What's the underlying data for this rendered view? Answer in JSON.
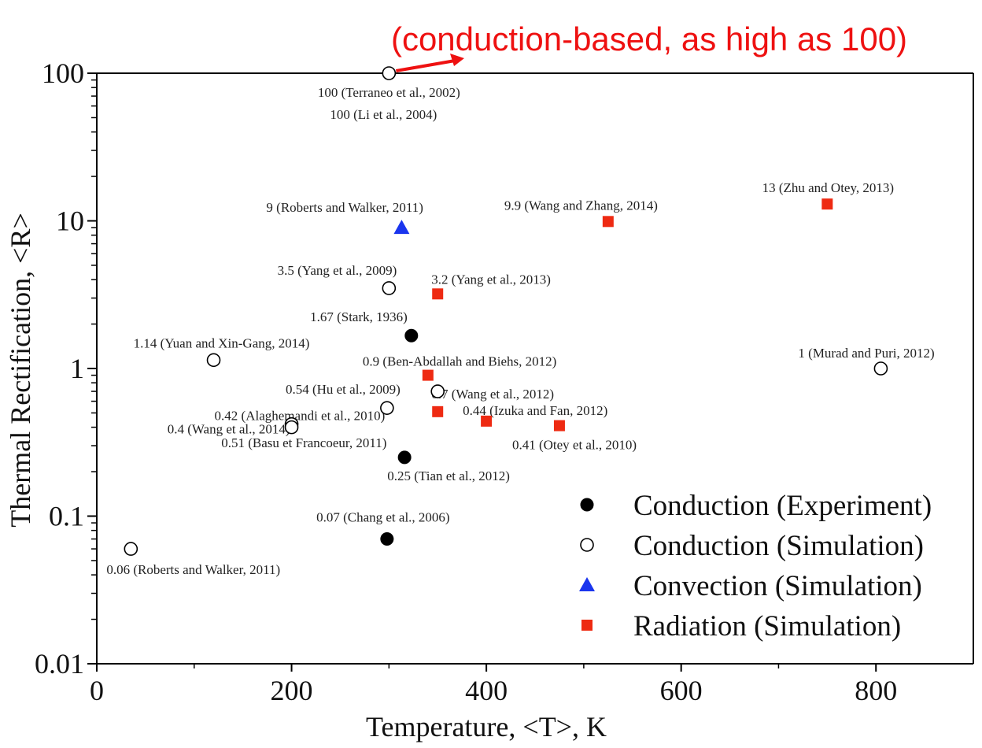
{
  "chart_data": {
    "type": "scatter",
    "title": "",
    "xlabel": "Temperature, <T>, K",
    "ylabel": "Thermal Rectification, <R>",
    "xlim": [
      0,
      900
    ],
    "ylim": [
      0.01,
      100
    ],
    "yscale": "log",
    "xticks": [
      "0",
      "200",
      "400",
      "600",
      "800"
    ],
    "yticks": [
      "0.01",
      "0.1",
      "1",
      "10",
      "100"
    ],
    "grid": false,
    "legend_position": "bottom-right",
    "annotation": {
      "text": "(conduction-based, as high as 100)",
      "color": "#ee1111",
      "points_to": {
        "x": 300,
        "y": 100
      }
    },
    "series": [
      {
        "name": "Conduction (Experiment)",
        "marker": "filled-circle",
        "color": "#000000",
        "points": [
          {
            "x": 323,
            "y": 1.67,
            "label": "1.67 (Stark, 1936)"
          },
          {
            "x": 316,
            "y": 0.25,
            "label": "0.25 (Tian et al., 2012)"
          },
          {
            "x": 298,
            "y": 0.07,
            "label": "0.07 (Chang et al., 2006)"
          }
        ]
      },
      {
        "name": "Conduction (Simulation)",
        "marker": "open-circle",
        "color": "#000000",
        "points": [
          {
            "x": 300,
            "y": 100,
            "label": "100 (Terraneo et al., 2002)"
          },
          {
            "x": 300,
            "y": 100,
            "label": "100 (Li et al., 2004)"
          },
          {
            "x": 300,
            "y": 3.5,
            "label": "3.5 (Yang et al., 2009)"
          },
          {
            "x": 120,
            "y": 1.14,
            "label": "1.14 (Yuan and Xin-Gang, 2014)"
          },
          {
            "x": 350,
            "y": 0.7,
            "label": "0.7 (Wang et al., 2012)"
          },
          {
            "x": 298,
            "y": 0.54,
            "label": "0.54 (Hu et al., 2009)"
          },
          {
            "x": 200,
            "y": 0.42,
            "label": "0.42 (Alaghemandi et al., 2010)"
          },
          {
            "x": 200,
            "y": 0.4,
            "label": "0.4 (Wang et al., 2014)"
          },
          {
            "x": 35,
            "y": 0.06,
            "label": "0.06 (Roberts and Walker, 2011)"
          },
          {
            "x": 805,
            "y": 1,
            "label": "1 (Murad and Puri, 2012)"
          }
        ]
      },
      {
        "name": "Convection (Simulation)",
        "marker": "filled-triangle",
        "color": "#1a35ee",
        "points": [
          {
            "x": 313,
            "y": 9,
            "label": "9 (Roberts and Walker, 2011)"
          }
        ]
      },
      {
        "name": "Radiation (Simulation)",
        "marker": "filled-square",
        "color": "#ee2a12",
        "points": [
          {
            "x": 750,
            "y": 13,
            "label": "13 (Zhu and Otey, 2013)"
          },
          {
            "x": 525,
            "y": 9.9,
            "label": "9.9 (Wang and Zhang, 2014)"
          },
          {
            "x": 350,
            "y": 3.2,
            "label": "3.2 (Yang et al., 2013)"
          },
          {
            "x": 340,
            "y": 0.9,
            "label": "0.9 (Ben-Abdallah and Biehs, 2012)"
          },
          {
            "x": 350,
            "y": 0.51,
            "label": "0.51 (Basu et Francoeur, 2011)"
          },
          {
            "x": 400,
            "y": 0.44,
            "label": "0.44 (Izuka and Fan, 2012)"
          },
          {
            "x": 475,
            "y": 0.41,
            "label": "0.41 (Otey et al., 2010)"
          }
        ]
      }
    ]
  }
}
